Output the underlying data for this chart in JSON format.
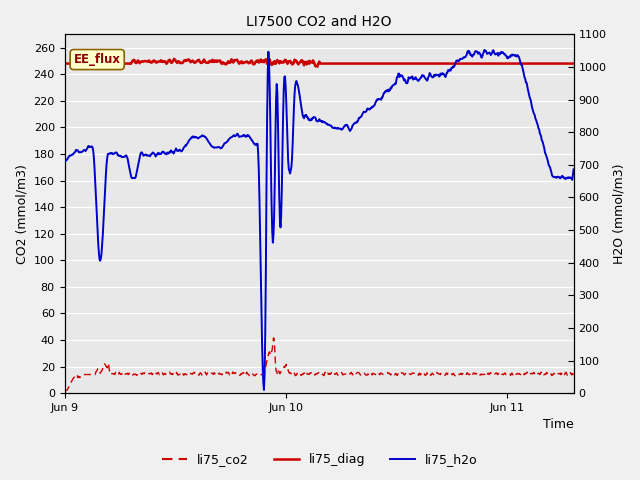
{
  "title": "LI7500 CO2 and H2O",
  "xlabel": "Time",
  "ylabel_left": "CO2 (mmol/m3)",
  "ylabel_right": "H2O (mmol/m3)",
  "ylim_left": [
    0,
    270
  ],
  "ylim_right": [
    0,
    1100
  ],
  "fig_bg_color": "#f0f0f0",
  "plot_bg_color": "#e8e8e8",
  "grid_color": "#ffffff",
  "annotation_text": "EE_flux",
  "annotation_color": "#8b0000",
  "annotation_bg": "#ffffcc",
  "annotation_edge": "#8b6000",
  "legend_entries": [
    "li75_co2",
    "li75_diag",
    "li75_h2o"
  ],
  "legend_colors_co2": "#cc0000",
  "legend_colors_diag": "#cc0000",
  "legend_colors_h2o": "#0000cc",
  "co2_color": "#cc0000",
  "diag_color": "#cc0000",
  "h2o_color": "#0000cc",
  "xtick_labels": [
    "Jun 9",
    "Jun 10",
    "Jun 11"
  ],
  "xtick_pos": [
    0,
    1,
    2
  ],
  "xlim": [
    0,
    2.3
  ],
  "yticks_left": [
    0,
    20,
    40,
    60,
    80,
    100,
    120,
    140,
    160,
    180,
    200,
    220,
    240,
    260
  ],
  "yticks_right": [
    0,
    100,
    200,
    300,
    400,
    500,
    600,
    700,
    800,
    900,
    1000,
    1100
  ]
}
